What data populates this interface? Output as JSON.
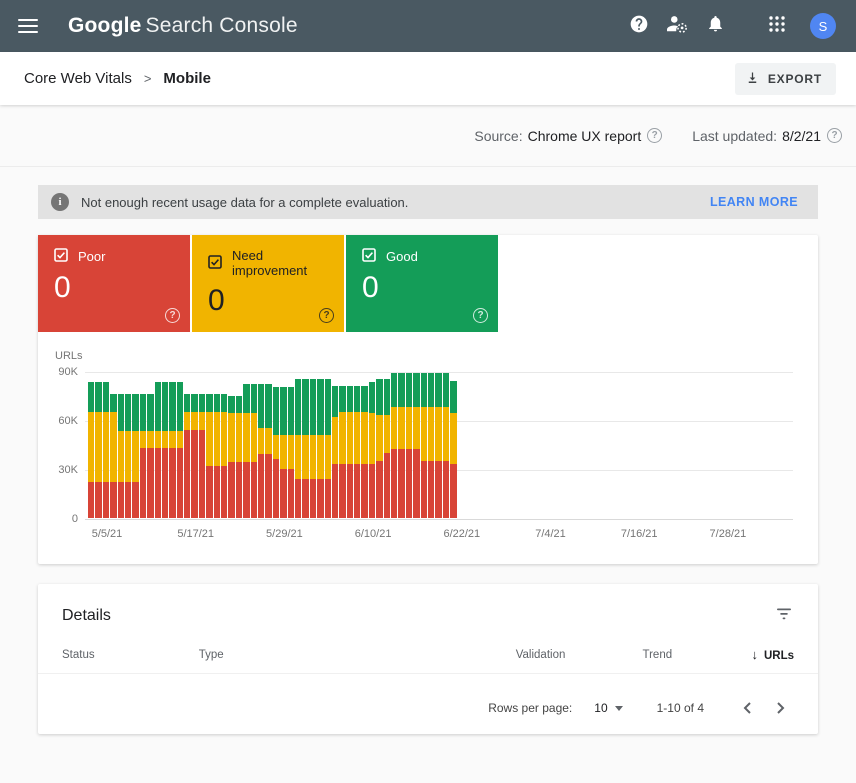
{
  "app_bar": {
    "logo_bold": "Google",
    "logo_rest": "Search Console",
    "avatar_initial": "S"
  },
  "breadcrumb": {
    "parent": "Core Web Vitals",
    "separator": ">",
    "current": "Mobile"
  },
  "toolbar": {
    "export_label": "EXPORT"
  },
  "source_bar": {
    "source_label": "Source:",
    "source_value": "Chrome UX report",
    "updated_label": "Last updated:",
    "updated_value": "8/2/21",
    "help_glyph": "?"
  },
  "banner": {
    "message": "Not enough recent usage data for a complete evaluation.",
    "action": "LEARN MORE"
  },
  "status_cards": [
    {
      "label": "Poor",
      "value": "0",
      "color": "#d84437",
      "text_color": "#ffffff"
    },
    {
      "label": "Need improvement",
      "value": "0",
      "color": "#f1b400",
      "text_color": "#202124"
    },
    {
      "label": "Good",
      "value": "0",
      "color": "#149d58",
      "text_color": "#ffffff"
    }
  ],
  "chart_data": {
    "type": "bar",
    "stacked": true,
    "ylabel": "URLs",
    "unit": "thousands of URLs",
    "ylim": [
      0,
      90000
    ],
    "yticks": [
      "90K",
      "60K",
      "30K",
      "0"
    ],
    "x_tick_labels": [
      "5/5/21",
      "5/17/21",
      "5/29/21",
      "6/10/21",
      "6/22/21",
      "7/4/21",
      "7/16/21",
      "7/28/21"
    ],
    "grid": true,
    "legend": "status cards above act as legend",
    "dates": [
      "5/3/21",
      "5/4/21",
      "5/5/21",
      "5/6/21",
      "5/7/21",
      "5/8/21",
      "5/9/21",
      "5/10/21",
      "5/11/21",
      "5/12/21",
      "5/13/21",
      "5/14/21",
      "5/15/21",
      "5/16/21",
      "5/17/21",
      "5/18/21",
      "5/19/21",
      "5/20/21",
      "5/21/21",
      "5/22/21",
      "5/23/21",
      "5/24/21",
      "5/25/21",
      "5/26/21",
      "5/27/21",
      "5/28/21",
      "5/29/21",
      "5/30/21",
      "5/31/21",
      "6/1/21",
      "6/2/21",
      "6/3/21",
      "6/4/21",
      "6/5/21",
      "6/6/21",
      "6/7/21",
      "6/8/21",
      "6/9/21",
      "6/10/21",
      "6/11/21",
      "6/12/21",
      "6/13/21",
      "6/14/21",
      "6/15/21",
      "6/16/21",
      "6/17/21",
      "6/18/21",
      "6/19/21",
      "6/20/21",
      "6/21/21"
    ],
    "series": [
      {
        "name": "Poor",
        "color": "#d84437",
        "values": [
          22,
          22,
          22,
          22,
          22,
          22,
          22,
          43,
          43,
          43,
          43,
          43,
          43,
          54,
          54,
          54,
          32,
          32,
          32,
          34,
          34,
          34,
          34,
          39,
          39,
          36,
          30,
          30,
          24,
          24,
          24,
          24,
          24,
          33,
          33,
          33,
          33,
          33,
          33,
          35,
          40,
          42,
          42,
          42,
          42,
          35,
          35,
          35,
          35,
          33
        ]
      },
      {
        "name": "Need improvement",
        "color": "#f1b400",
        "values": [
          43,
          43,
          43,
          43,
          31,
          31,
          31,
          10,
          10,
          10,
          10,
          10,
          10,
          11,
          11,
          11,
          33,
          33,
          33,
          30,
          30,
          30,
          30,
          16,
          16,
          15,
          21,
          21,
          27,
          27,
          27,
          27,
          27,
          29,
          32,
          32,
          32,
          32,
          31,
          28,
          23,
          26,
          26,
          26,
          26,
          33,
          33,
          33,
          33,
          31
        ]
      },
      {
        "name": "Good",
        "color": "#149d58",
        "values": [
          18,
          18,
          18,
          11,
          23,
          23,
          23,
          23,
          23,
          30,
          30,
          30,
          30,
          11,
          11,
          11,
          11,
          11,
          11,
          11,
          11,
          18,
          18,
          27,
          27,
          29,
          29,
          29,
          34,
          34,
          34,
          34,
          34,
          19,
          16,
          16,
          16,
          16,
          19,
          22,
          22,
          21,
          21,
          21,
          21,
          21,
          21,
          21,
          21,
          20
        ]
      }
    ]
  },
  "details": {
    "title": "Details",
    "columns": [
      "Status",
      "Type",
      "Validation",
      "Trend",
      "URLs"
    ],
    "sort_column": "URLs",
    "sort_glyph": "↓",
    "rows": [],
    "pagination": {
      "rows_per_page_label": "Rows per page:",
      "rows_per_page_value": "10",
      "range_text": "1-10 of 4"
    }
  }
}
